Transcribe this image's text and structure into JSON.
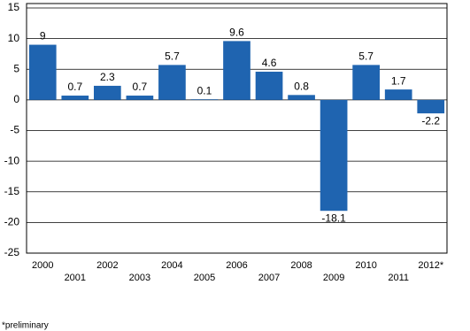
{
  "chart_data": {
    "type": "bar",
    "categories": [
      "2000",
      "2001",
      "2002",
      "2003",
      "2004",
      "2005",
      "2006",
      "2007",
      "2008",
      "2009",
      "2010",
      "2011",
      "2012*"
    ],
    "values": [
      9,
      0.7,
      2.3,
      0.7,
      5.7,
      0.1,
      9.6,
      4.6,
      0.8,
      -18.1,
      5.7,
      1.7,
      -2.2
    ],
    "color": "#1f64b0",
    "ylim": [
      -25,
      15
    ],
    "yticks": [
      -25,
      -20,
      -15,
      -10,
      -5,
      0,
      5,
      10,
      15
    ],
    "grid": true,
    "footnote": "*preliminary"
  }
}
